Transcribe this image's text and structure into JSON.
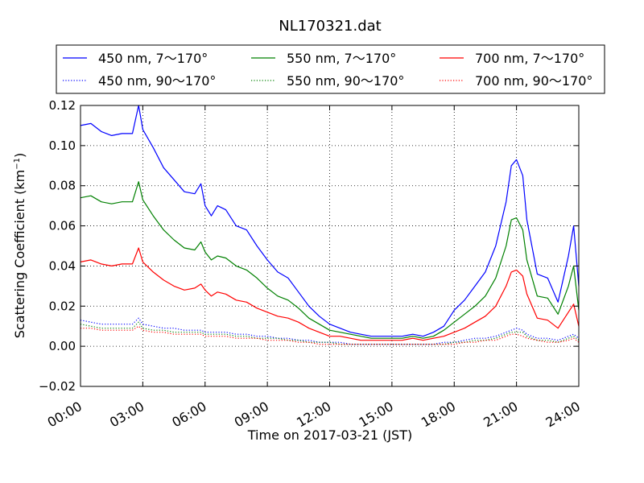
{
  "chart_data": {
    "type": "line",
    "title": "NL170321.dat",
    "xlabel": "Time on 2017-03-21 (JST)",
    "ylabel": "Scattering Coefficient (km",
    "ylabel_sup": "−1",
    "ylabel_close": ")",
    "x_unit": "hours",
    "xlim": [
      0,
      24
    ],
    "ylim": [
      -0.02,
      0.12
    ],
    "grid": true,
    "legend_position": "top",
    "x_ticks": [
      {
        "value": 0,
        "label": "00:00"
      },
      {
        "value": 3,
        "label": "03:00"
      },
      {
        "value": 6,
        "label": "06:00"
      },
      {
        "value": 9,
        "label": "09:00"
      },
      {
        "value": 12,
        "label": "12:00"
      },
      {
        "value": 15,
        "label": "15:00"
      },
      {
        "value": 18,
        "label": "18:00"
      },
      {
        "value": 21,
        "label": "21:00"
      },
      {
        "value": 24,
        "label": "24:00"
      }
    ],
    "y_ticks": [
      {
        "value": -0.02,
        "label": "−0.02"
      },
      {
        "value": 0.0,
        "label": "0.00"
      },
      {
        "value": 0.02,
        "label": "0.02"
      },
      {
        "value": 0.04,
        "label": "0.04"
      },
      {
        "value": 0.06,
        "label": "0.06"
      },
      {
        "value": 0.08,
        "label": "0.08"
      },
      {
        "value": 0.1,
        "label": "0.10"
      },
      {
        "value": 0.12,
        "label": "0.12"
      }
    ],
    "x": [
      0.0,
      0.5,
      1.0,
      1.5,
      2.0,
      2.5,
      2.8,
      3.0,
      3.5,
      4.0,
      4.5,
      5.0,
      5.5,
      5.8,
      6.0,
      6.3,
      6.6,
      7.0,
      7.5,
      8.0,
      8.5,
      9.0,
      9.5,
      10.0,
      10.5,
      11.0,
      11.5,
      12.0,
      12.5,
      13.0,
      13.5,
      14.0,
      14.5,
      15.0,
      15.5,
      16.0,
      16.5,
      17.0,
      17.5,
      18.0,
      18.5,
      19.0,
      19.5,
      20.0,
      20.5,
      20.75,
      21.0,
      21.3,
      21.5,
      22.0,
      22.5,
      23.0,
      23.5,
      23.75,
      24.0
    ],
    "series": [
      {
        "name": "450 nm, 7～170°",
        "color": "#0000ff",
        "style": "solid",
        "values": [
          0.11,
          0.111,
          0.107,
          0.105,
          0.106,
          0.106,
          0.12,
          0.108,
          0.099,
          0.089,
          0.083,
          0.077,
          0.076,
          0.081,
          0.07,
          0.065,
          0.07,
          0.068,
          0.06,
          0.058,
          0.05,
          0.043,
          0.037,
          0.034,
          0.027,
          0.02,
          0.015,
          0.011,
          0.009,
          0.007,
          0.006,
          0.005,
          0.005,
          0.005,
          0.005,
          0.006,
          0.005,
          0.007,
          0.01,
          0.018,
          0.023,
          0.03,
          0.037,
          0.05,
          0.072,
          0.09,
          0.093,
          0.085,
          0.063,
          0.036,
          0.034,
          0.022,
          0.045,
          0.06,
          0.03
        ]
      },
      {
        "name": "550 nm, 7～170°",
        "color": "#008000",
        "style": "solid",
        "values": [
          0.074,
          0.075,
          0.072,
          0.071,
          0.072,
          0.072,
          0.082,
          0.073,
          0.065,
          0.058,
          0.053,
          0.049,
          0.048,
          0.052,
          0.047,
          0.043,
          0.045,
          0.044,
          0.04,
          0.038,
          0.034,
          0.029,
          0.025,
          0.023,
          0.019,
          0.014,
          0.011,
          0.008,
          0.007,
          0.006,
          0.005,
          0.004,
          0.004,
          0.004,
          0.004,
          0.005,
          0.004,
          0.005,
          0.008,
          0.012,
          0.016,
          0.02,
          0.025,
          0.034,
          0.05,
          0.063,
          0.064,
          0.058,
          0.043,
          0.025,
          0.024,
          0.016,
          0.03,
          0.04,
          0.018
        ]
      },
      {
        "name": "700 nm, 7～170°",
        "color": "#ff0000",
        "style": "solid",
        "values": [
          0.042,
          0.043,
          0.041,
          0.04,
          0.041,
          0.041,
          0.049,
          0.042,
          0.037,
          0.033,
          0.03,
          0.028,
          0.029,
          0.031,
          0.028,
          0.025,
          0.027,
          0.026,
          0.023,
          0.022,
          0.019,
          0.017,
          0.015,
          0.014,
          0.012,
          0.009,
          0.007,
          0.005,
          0.005,
          0.004,
          0.003,
          0.003,
          0.003,
          0.003,
          0.003,
          0.004,
          0.003,
          0.004,
          0.005,
          0.007,
          0.009,
          0.012,
          0.015,
          0.02,
          0.03,
          0.037,
          0.038,
          0.035,
          0.026,
          0.014,
          0.013,
          0.009,
          0.017,
          0.021,
          0.01
        ]
      },
      {
        "name": "450 nm, 90～170°",
        "color": "#0000ff",
        "style": "dotted",
        "values": [
          0.013,
          0.012,
          0.011,
          0.011,
          0.011,
          0.011,
          0.014,
          0.011,
          0.01,
          0.009,
          0.009,
          0.008,
          0.008,
          0.008,
          0.007,
          0.007,
          0.007,
          0.007,
          0.006,
          0.006,
          0.005,
          0.005,
          0.004,
          0.004,
          0.003,
          0.003,
          0.002,
          0.002,
          0.002,
          0.001,
          0.001,
          0.001,
          0.001,
          0.001,
          0.001,
          0.001,
          0.001,
          0.001,
          0.002,
          0.002,
          0.003,
          0.004,
          0.004,
          0.005,
          0.007,
          0.008,
          0.009,
          0.008,
          0.006,
          0.004,
          0.004,
          0.003,
          0.005,
          0.006,
          0.004
        ]
      },
      {
        "name": "550 nm, 90～170°",
        "color": "#008000",
        "style": "dotted",
        "values": [
          0.011,
          0.01,
          0.009,
          0.009,
          0.009,
          0.009,
          0.012,
          0.009,
          0.008,
          0.008,
          0.007,
          0.007,
          0.007,
          0.007,
          0.006,
          0.006,
          0.006,
          0.006,
          0.005,
          0.005,
          0.004,
          0.004,
          0.004,
          0.003,
          0.003,
          0.002,
          0.002,
          0.002,
          0.001,
          0.001,
          0.001,
          0.001,
          0.001,
          0.001,
          0.001,
          0.001,
          0.001,
          0.001,
          0.001,
          0.002,
          0.002,
          0.003,
          0.003,
          0.004,
          0.006,
          0.007,
          0.007,
          0.007,
          0.005,
          0.003,
          0.003,
          0.002,
          0.004,
          0.005,
          0.003
        ]
      },
      {
        "name": "700 nm, 90～170°",
        "color": "#ff0000",
        "style": "dotted",
        "values": [
          0.009,
          0.009,
          0.008,
          0.008,
          0.008,
          0.008,
          0.01,
          0.008,
          0.007,
          0.007,
          0.006,
          0.006,
          0.006,
          0.006,
          0.005,
          0.005,
          0.005,
          0.005,
          0.004,
          0.004,
          0.004,
          0.003,
          0.003,
          0.003,
          0.002,
          0.002,
          0.001,
          0.001,
          0.001,
          0.001,
          0.001,
          0.001,
          0.001,
          0.001,
          0.001,
          0.001,
          0.001,
          0.001,
          0.001,
          0.001,
          0.002,
          0.002,
          0.003,
          0.003,
          0.005,
          0.006,
          0.006,
          0.005,
          0.004,
          0.003,
          0.002,
          0.002,
          0.003,
          0.004,
          0.002
        ]
      }
    ]
  }
}
